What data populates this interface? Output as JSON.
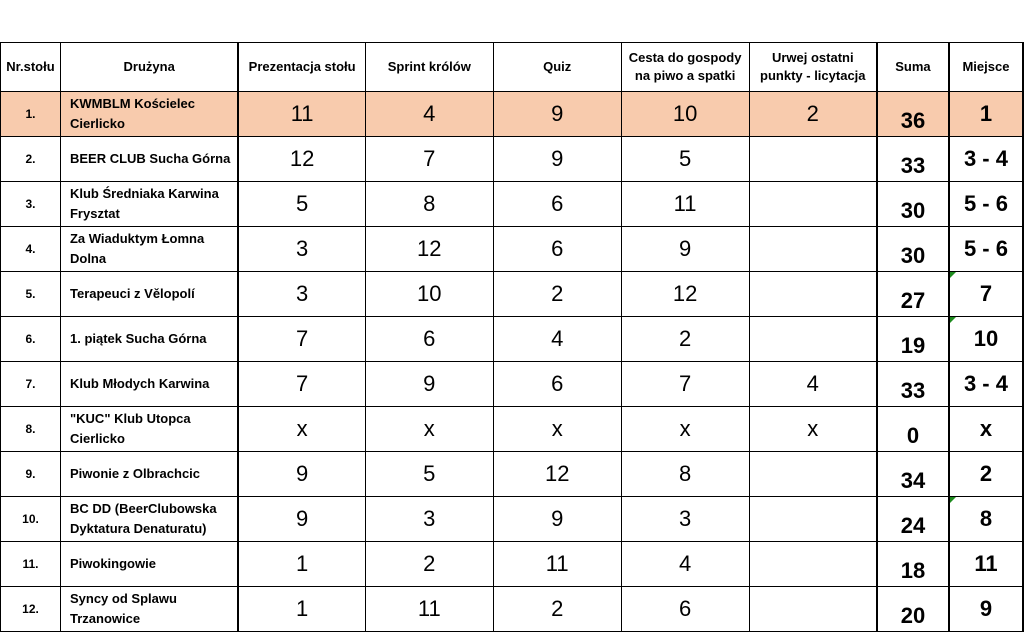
{
  "headers": {
    "nr": "Nr.stołu",
    "team": "Drużyna",
    "c1": "Prezentacja stołu",
    "c2": "Sprint królów",
    "c3": "Quiz",
    "c4_line1": "Cesta do gospody",
    "c4_line2": "na piwo a spatki",
    "c5_line1": "Urwej ostatni",
    "c5_line2": "punkty - licytacja",
    "suma": "Suma",
    "miejsce": "Miejsce"
  },
  "highlight_color": "#f8cbad",
  "rows": [
    {
      "nr": "1.",
      "team_l1": "KWMBLM Kościelec",
      "team_l2": "Cierlicko",
      "c1": "11",
      "c2": "4",
      "c3": "9",
      "c4": "10",
      "c5": "2",
      "suma": "36",
      "miejsce": "1"
    },
    {
      "nr": "2.",
      "team_l1": "BEER CLUB Sucha Górna",
      "team_l2": "",
      "c1": "12",
      "c2": "7",
      "c3": "9",
      "c4": "5",
      "c5": "",
      "suma": "33",
      "miejsce": "3 - 4"
    },
    {
      "nr": "3.",
      "team_l1": "Klub Średniaka Karwina",
      "team_l2": "Frysztat",
      "c1": "5",
      "c2": "8",
      "c3": "6",
      "c4": "11",
      "c5": "",
      "suma": "30",
      "miejsce": "5 - 6"
    },
    {
      "nr": "4.",
      "team_l1": "Za Wiaduktym Łomna",
      "team_l2": "Dolna",
      "c1": "3",
      "c2": "12",
      "c3": "6",
      "c4": "9",
      "c5": "",
      "suma": "30",
      "miejsce": "5 - 6"
    },
    {
      "nr": "5.",
      "team_l1": "Terapeuci z Vělopolí",
      "team_l2": "",
      "c1": "3",
      "c2": "10",
      "c3": "2",
      "c4": "12",
      "c5": "",
      "suma": "27",
      "miejsce": "7"
    },
    {
      "nr": "6.",
      "team_l1": "1. piątek Sucha Górna",
      "team_l2": "",
      "c1": "7",
      "c2": "6",
      "c3": "4",
      "c4": "2",
      "c5": "",
      "suma": "19",
      "miejsce": "10"
    },
    {
      "nr": "7.",
      "team_l1": "Klub Młodych Karwina",
      "team_l2": "",
      "c1": "7",
      "c2": "9",
      "c3": "6",
      "c4": "7",
      "c5": "4",
      "suma": "33",
      "miejsce": "3 - 4"
    },
    {
      "nr": "8.",
      "team_l1": "\"KUC\" Klub Utopca",
      "team_l2": "Cierlicko",
      "c1": "x",
      "c2": "x",
      "c3": "x",
      "c4": "x",
      "c5": "x",
      "suma": "0",
      "miejsce": "x"
    },
    {
      "nr": "9.",
      "team_l1": "Piwonie z Olbrachcic",
      "team_l2": "",
      "c1": "9",
      "c2": "5",
      "c3": "12",
      "c4": "8",
      "c5": "",
      "suma": "34",
      "miejsce": "2"
    },
    {
      "nr": "10.",
      "team_l1": "BC DD (BeerClubowska",
      "team_l2": "Dyktatura Denaturatu)",
      "c1": "9",
      "c2": "3",
      "c3": "9",
      "c4": "3",
      "c5": "",
      "suma": "24",
      "miejsce": "8"
    },
    {
      "nr": "11.",
      "team_l1": "Piwokingowie",
      "team_l2": "",
      "c1": "1",
      "c2": "2",
      "c3": "11",
      "c4": "4",
      "c5": "",
      "suma": "18",
      "miejsce": "11"
    },
    {
      "nr": "12.",
      "team_l1": "Syncy od Splawu",
      "team_l2": "Trzanowice",
      "c1": "1",
      "c2": "11",
      "c3": "2",
      "c4": "6",
      "c5": "",
      "suma": "20",
      "miejsce": "9"
    }
  ]
}
